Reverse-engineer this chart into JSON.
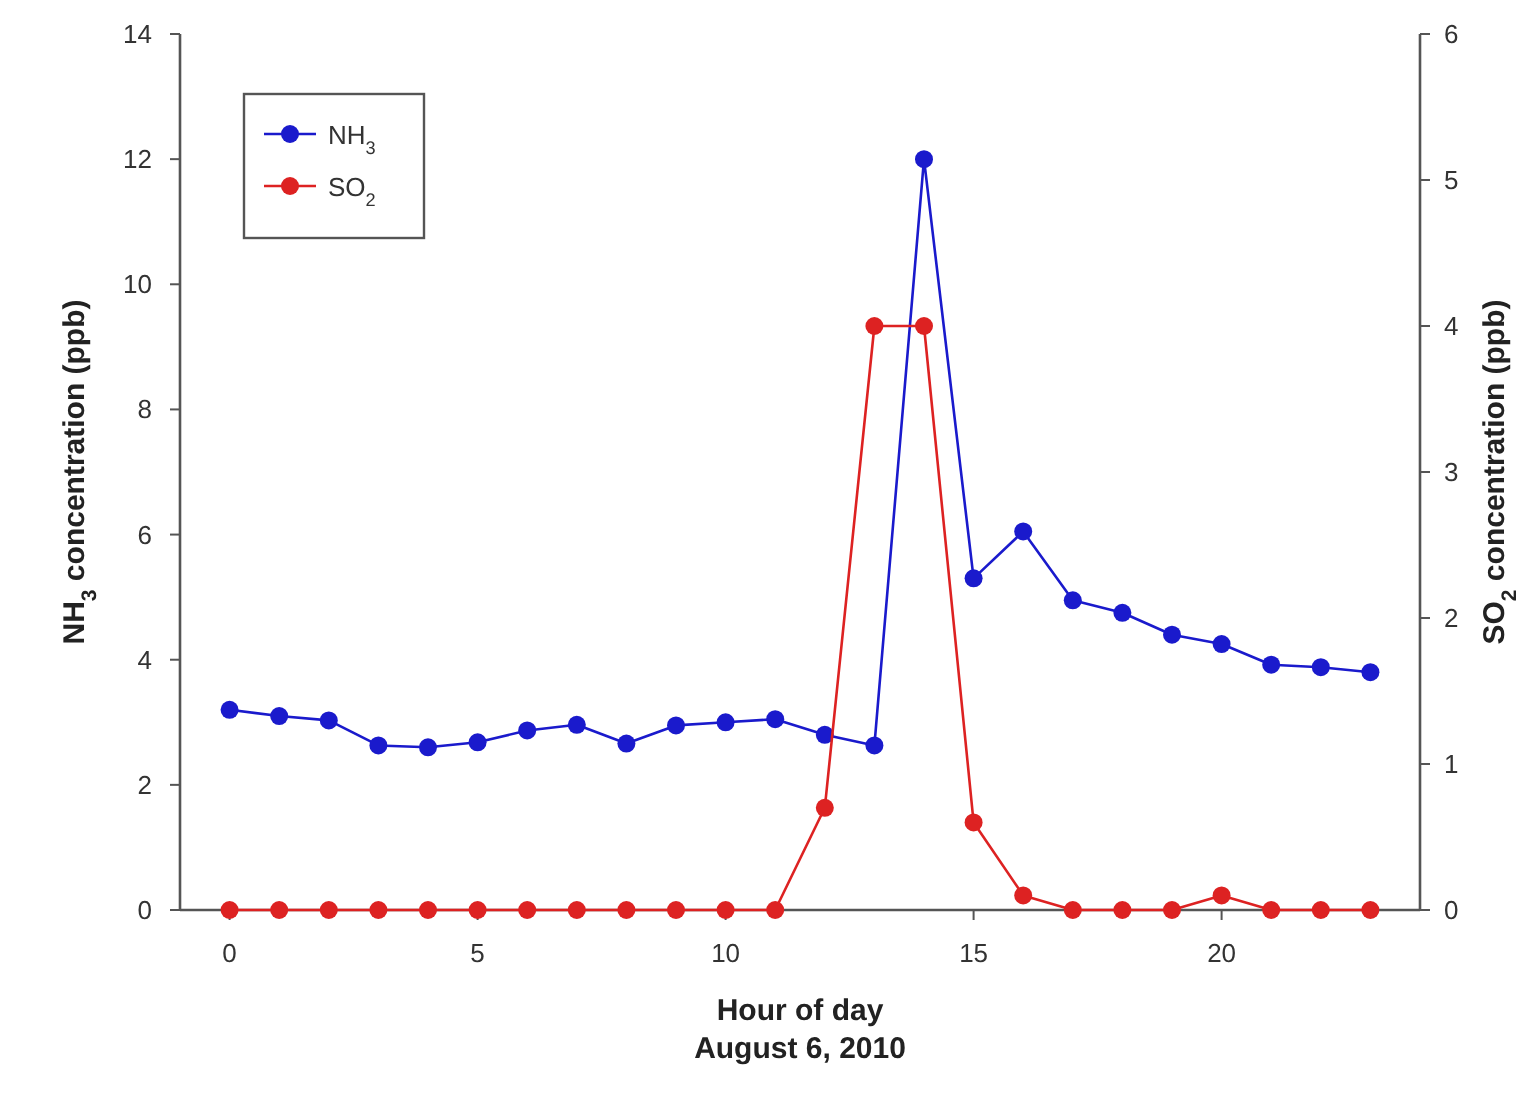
{
  "chart_data": {
    "type": "line",
    "xlabel": "Hour of day\nAugust 6, 2010",
    "ylabel": "NH$_{3}$ concentration (ppb)",
    "y2label": "SO$_{2}$ concentration (ppb)",
    "x": [
      0,
      1,
      2,
      3,
      4,
      5,
      6,
      7,
      8,
      9,
      10,
      11,
      12,
      13,
      14,
      15,
      16,
      17,
      18,
      19,
      20,
      21,
      22,
      23
    ],
    "xlim": [
      -1,
      24
    ],
    "xticks": [
      0,
      5,
      10,
      15,
      20
    ],
    "ylim": [
      0,
      14
    ],
    "yticks": [
      0,
      2,
      4,
      6,
      8,
      10,
      12,
      14
    ],
    "y2lim": [
      0,
      6
    ],
    "y2ticks": [
      0,
      1,
      2,
      3,
      4,
      5,
      6
    ],
    "series": [
      {
        "name": "NH$_{3}$",
        "color": "#1a1acc",
        "values": [
          3.2,
          3.1,
          3.03,
          2.63,
          2.6,
          2.68,
          2.87,
          2.96,
          2.66,
          2.95,
          3.0,
          3.05,
          2.8,
          2.63,
          12,
          5.3,
          6.05,
          4.95,
          4.75,
          4.4,
          4.25,
          3.92,
          3.88,
          3.8
        ]
      },
      {
        "name": "SO$_{2}$",
        "color": "#dd2222",
        "axis": "y2",
        "values": [
          0,
          0,
          0,
          0,
          0,
          0,
          0,
          0,
          0,
          0,
          0,
          0,
          0.7,
          4,
          4,
          0.6,
          0.1,
          0,
          0,
          0,
          0.1,
          0,
          0,
          0
        ]
      }
    ],
    "marker": "circle",
    "line_style": "solid",
    "grid": false,
    "legend": "top left"
  }
}
